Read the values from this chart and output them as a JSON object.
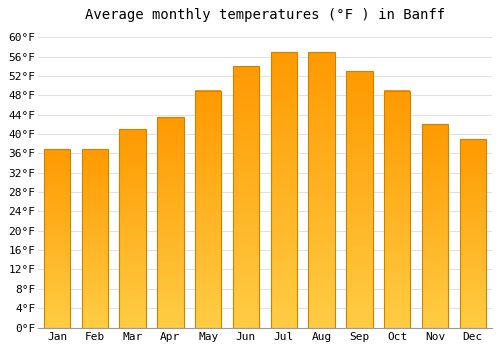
{
  "title": "Average monthly temperatures (°F ) in Banff",
  "months": [
    "Jan",
    "Feb",
    "Mar",
    "Apr",
    "May",
    "Jun",
    "Jul",
    "Aug",
    "Sep",
    "Oct",
    "Nov",
    "Dec"
  ],
  "values": [
    37.0,
    37.0,
    41.0,
    43.5,
    49.0,
    54.0,
    57.0,
    57.0,
    53.0,
    49.0,
    42.0,
    39.0
  ],
  "bar_color": "#FFA500",
  "bar_edge_color": "#CC8400",
  "ylim": [
    0,
    62
  ],
  "yticks": [
    0,
    4,
    8,
    12,
    16,
    20,
    24,
    28,
    32,
    36,
    40,
    44,
    48,
    52,
    56,
    60
  ],
  "ytick_labels": [
    "0°F",
    "4°F",
    "8°F",
    "12°F",
    "16°F",
    "20°F",
    "24°F",
    "28°F",
    "32°F",
    "36°F",
    "40°F",
    "44°F",
    "48°F",
    "52°F",
    "56°F",
    "60°F"
  ],
  "background_color": "#ffffff",
  "grid_color": "#e0e0e0",
  "title_fontsize": 10,
  "tick_fontsize": 8,
  "font_family": "monospace",
  "bar_width": 0.7,
  "figsize": [
    5.0,
    3.5
  ],
  "dpi": 100
}
